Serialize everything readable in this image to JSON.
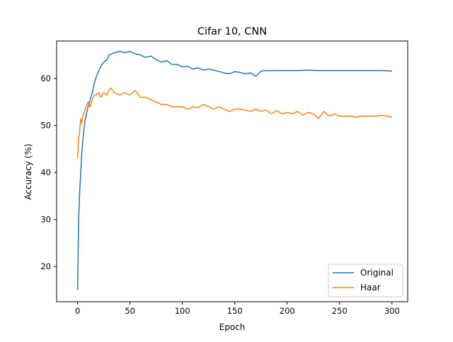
{
  "chart_data": {
    "type": "line",
    "title": "Cifar 10, CNN",
    "xlabel": "Epoch",
    "ylabel": "Accuracy (%)",
    "xlim": [
      -20,
      315
    ],
    "ylim": [
      12.5,
      68
    ],
    "x_ticks": [
      0,
      50,
      100,
      150,
      200,
      250,
      300
    ],
    "y_ticks": [
      20,
      30,
      40,
      50,
      60
    ],
    "grid": false,
    "legend_position": "bottom-right",
    "series": [
      {
        "name": "Original",
        "color": "#1f77b4",
        "x": [
          0,
          1,
          2,
          3,
          4,
          5,
          6,
          7,
          8,
          10,
          12,
          14,
          16,
          18,
          20,
          22,
          25,
          28,
          30,
          35,
          40,
          45,
          50,
          55,
          60,
          65,
          70,
          75,
          80,
          85,
          90,
          95,
          100,
          105,
          110,
          115,
          120,
          125,
          130,
          135,
          140,
          145,
          150,
          155,
          160,
          165,
          170,
          175,
          180,
          190,
          200,
          210,
          220,
          230,
          240,
          250,
          260,
          270,
          280,
          290,
          300
        ],
        "values": [
          15,
          30,
          36,
          40,
          44,
          47,
          49,
          51,
          52,
          54,
          55.5,
          57,
          59,
          60.5,
          61.5,
          62.5,
          63.5,
          64,
          65,
          65.5,
          65.8,
          65.5,
          65.8,
          65.3,
          65,
          64.5,
          64.8,
          64,
          63.5,
          63.8,
          63,
          63,
          62.5,
          62.6,
          62,
          62.3,
          61.8,
          62,
          61.8,
          61.5,
          61.2,
          61,
          61.5,
          61.3,
          61,
          61.2,
          60.5,
          61.6,
          61.7,
          61.7,
          61.7,
          61.7,
          61.8,
          61.7,
          61.7,
          61.7,
          61.7,
          61.7,
          61.7,
          61.7,
          61.6
        ]
      },
      {
        "name": "Haar",
        "color": "#ff7f0e",
        "x": [
          0,
          1,
          2,
          3,
          4,
          5,
          6,
          8,
          10,
          12,
          14,
          16,
          18,
          20,
          22,
          25,
          28,
          30,
          32,
          35,
          40,
          45,
          50,
          55,
          60,
          65,
          70,
          75,
          80,
          85,
          90,
          95,
          100,
          105,
          110,
          115,
          120,
          125,
          130,
          135,
          140,
          145,
          150,
          155,
          160,
          165,
          170,
          175,
          180,
          185,
          190,
          195,
          200,
          205,
          210,
          215,
          220,
          225,
          230,
          235,
          240,
          245,
          250,
          255,
          260,
          265,
          270,
          275,
          280,
          285,
          290,
          295,
          300
        ],
        "values": [
          43,
          47,
          49,
          51.5,
          50.5,
          52,
          52.5,
          54,
          55,
          54,
          55.5,
          56.5,
          56.5,
          57,
          56,
          57,
          56.5,
          57.5,
          58,
          57,
          56.5,
          57,
          56.5,
          57.5,
          56,
          56,
          55.5,
          55,
          54.5,
          54.5,
          54,
          54,
          54,
          53.5,
          54,
          53.8,
          54.5,
          54,
          53.5,
          54,
          53.5,
          53,
          53.5,
          53.5,
          53.3,
          53,
          53.5,
          53,
          53.3,
          52.5,
          53.2,
          52.5,
          52.8,
          52.5,
          53,
          52.2,
          52.8,
          52.5,
          51.5,
          53,
          52,
          52.5,
          52,
          52,
          52,
          51.8,
          52,
          52,
          52,
          52,
          52.2,
          52,
          51.8
        ]
      }
    ]
  }
}
